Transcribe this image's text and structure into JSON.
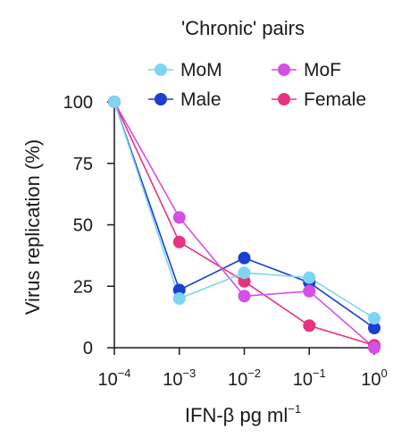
{
  "chart_data": {
    "type": "line",
    "title": "",
    "legend_title": "'Chronic' pairs",
    "legend_position": "top",
    "xlabel": {
      "main": "IFN-β pg ml",
      "sup": "−1"
    },
    "ylabel": "Virus replication (%)",
    "x_scale": "log",
    "x": [
      0.0001,
      0.001,
      0.01,
      0.1,
      1
    ],
    "x_tick_labels": [
      {
        "base": "10",
        "exp": "−4"
      },
      {
        "base": "10",
        "exp": "−3"
      },
      {
        "base": "10",
        "exp": "−2"
      },
      {
        "base": "10",
        "exp": "−1"
      },
      {
        "base": "10",
        "exp": "0"
      }
    ],
    "y_ticks": [
      "0",
      "25",
      "50",
      "75",
      "100"
    ],
    "ylim": [
      0,
      100
    ],
    "grid": false,
    "series": [
      {
        "name": "MoM",
        "color": "#7fd4f2",
        "values": [
          100,
          20,
          30.5,
          28.5,
          12
        ]
      },
      {
        "name": "MoF",
        "color": "#d44fe6",
        "values": [
          100,
          53,
          21,
          23,
          0
        ]
      },
      {
        "name": "Male",
        "color": "#1a3fd1",
        "values": [
          100,
          23.5,
          36.5,
          26.5,
          8
        ]
      },
      {
        "name": "Female",
        "color": "#e8337f",
        "values": [
          100,
          43,
          27,
          9,
          1
        ]
      }
    ]
  }
}
